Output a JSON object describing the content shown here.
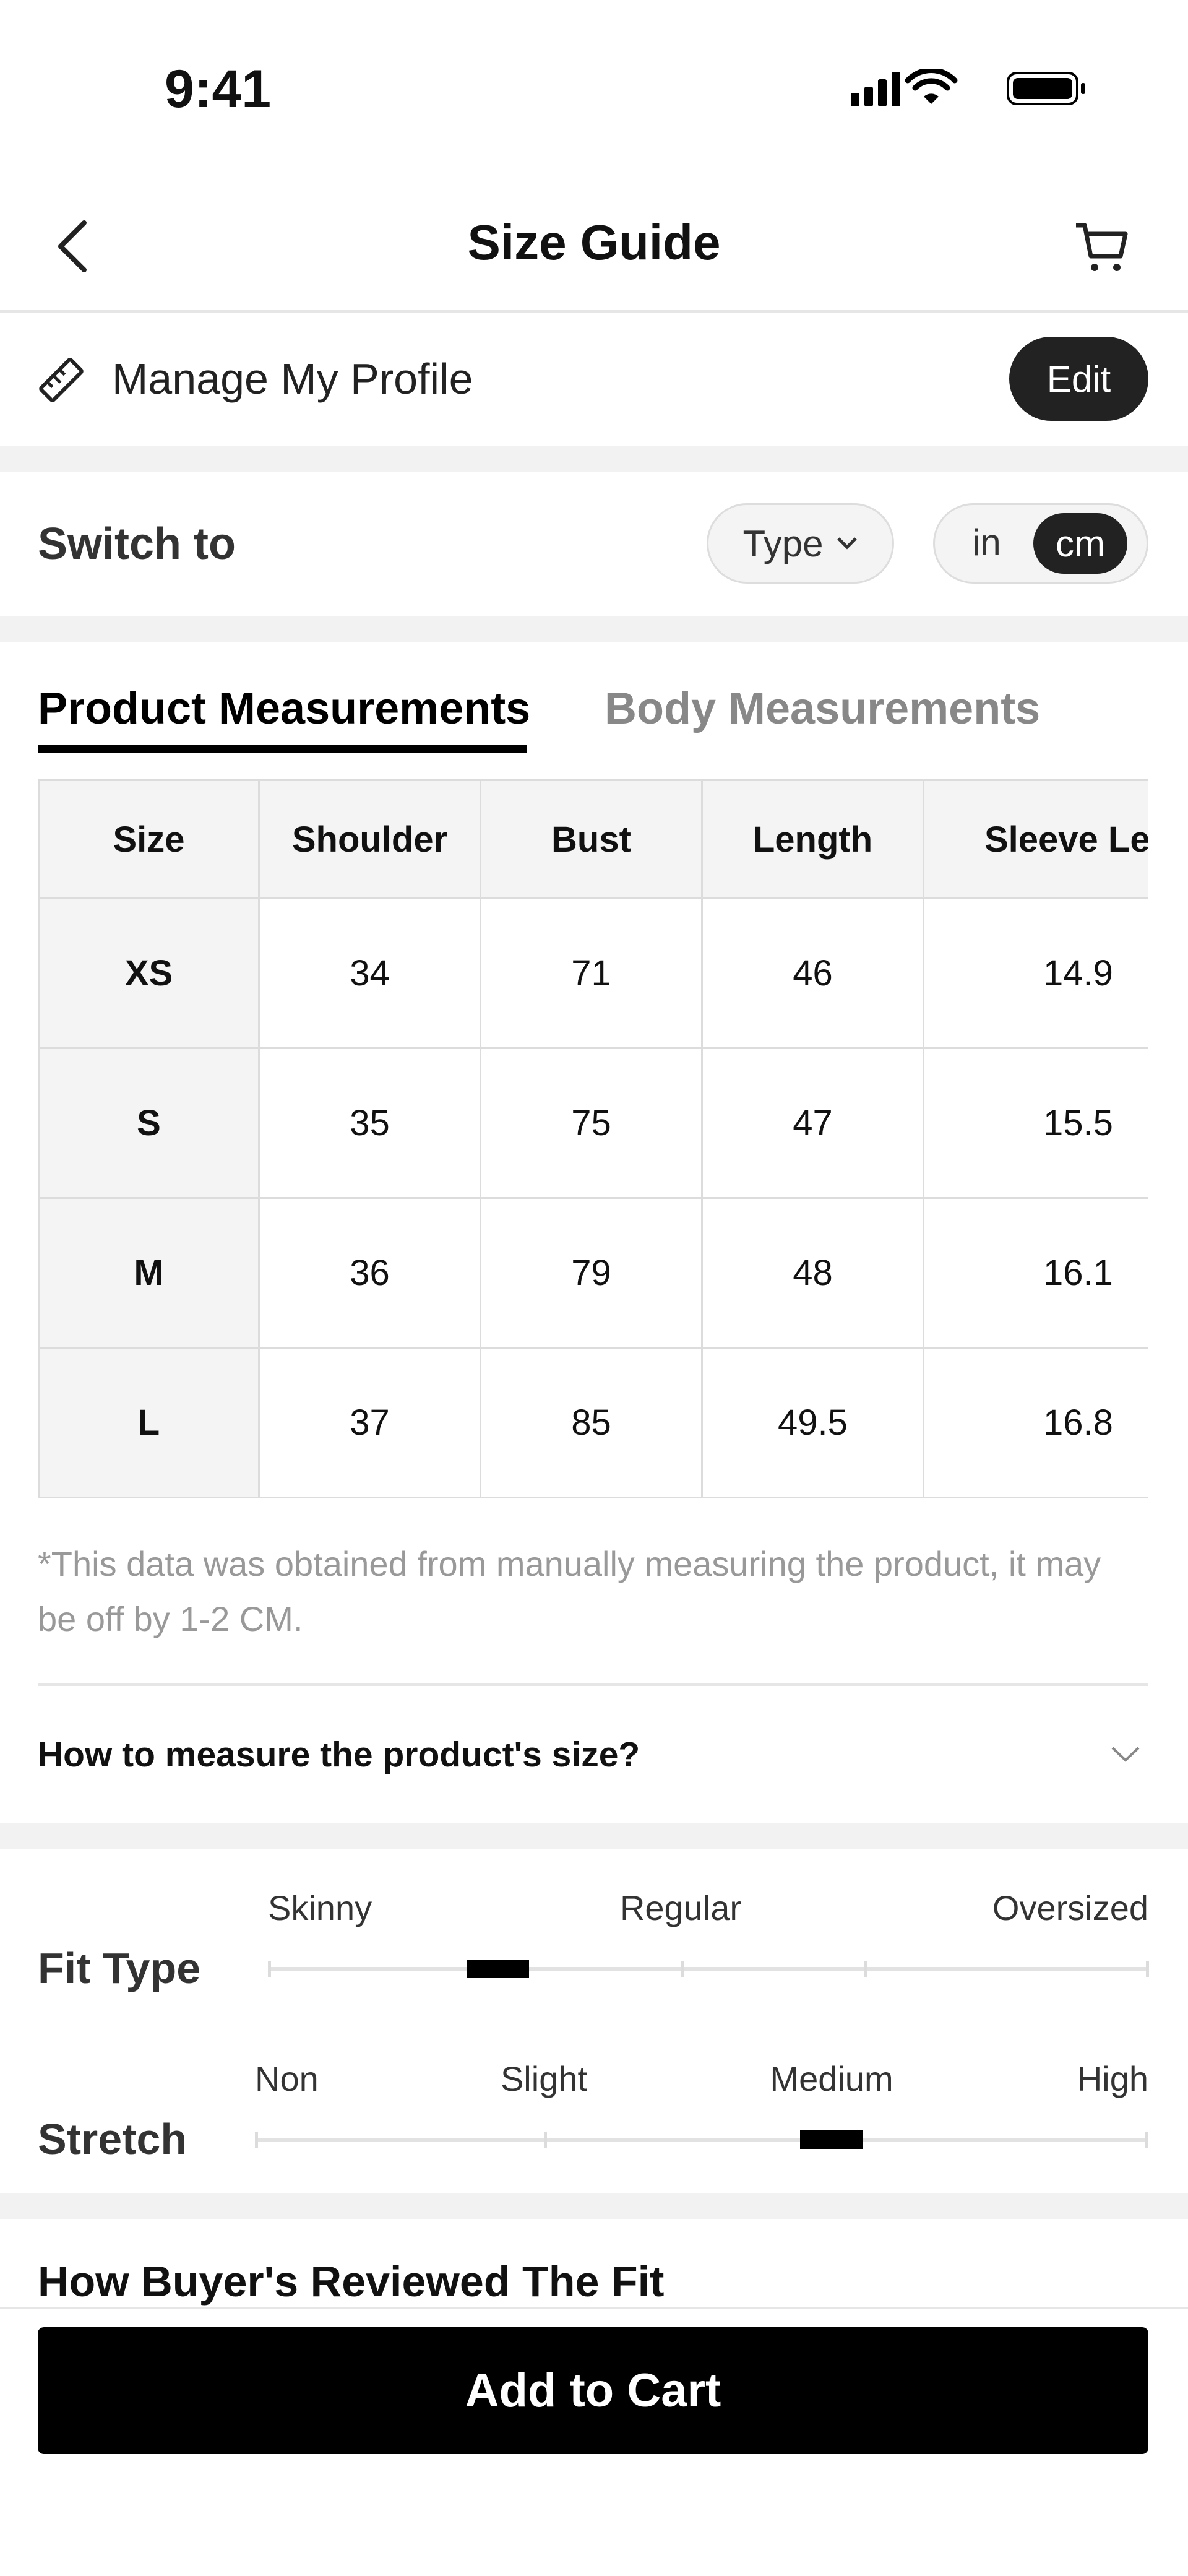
{
  "status": {
    "time": "9:41"
  },
  "nav": {
    "title": "Size Guide"
  },
  "profile": {
    "label": "Manage My Profile",
    "action": "Edit"
  },
  "switch": {
    "label": "Switch to",
    "type": "Type",
    "units": [
      "in",
      "cm"
    ]
  },
  "tabs": [
    "Product Measurements",
    "Body Measurements"
  ],
  "table": {
    "headers": [
      "Size",
      "Shoulder",
      "Bust",
      "Length",
      "Sleeve Len"
    ],
    "rows": [
      [
        "XS",
        "34",
        "71",
        "46",
        "14.9"
      ],
      [
        "S",
        "35",
        "75",
        "47",
        "15.5"
      ],
      [
        "M",
        "36",
        "79",
        "48",
        "16.1"
      ],
      [
        "L",
        "37",
        "85",
        "49.5",
        "16.8"
      ]
    ]
  },
  "note": "*This data was obtained from manually measuring the product, it may be off by 1-2 CM.",
  "accordion": "How to measure the product's size?",
  "fit": [
    {
      "label": "Fit Type",
      "options": [
        "Skinny",
        "Regular",
        "Oversized"
      ]
    },
    {
      "label": "Stretch",
      "options": [
        "Non",
        "Slight",
        "Medium",
        "High"
      ]
    }
  ],
  "reviews": {
    "title": "How Buyer's Reviewed The Fit"
  },
  "button": "Add to Cart"
}
